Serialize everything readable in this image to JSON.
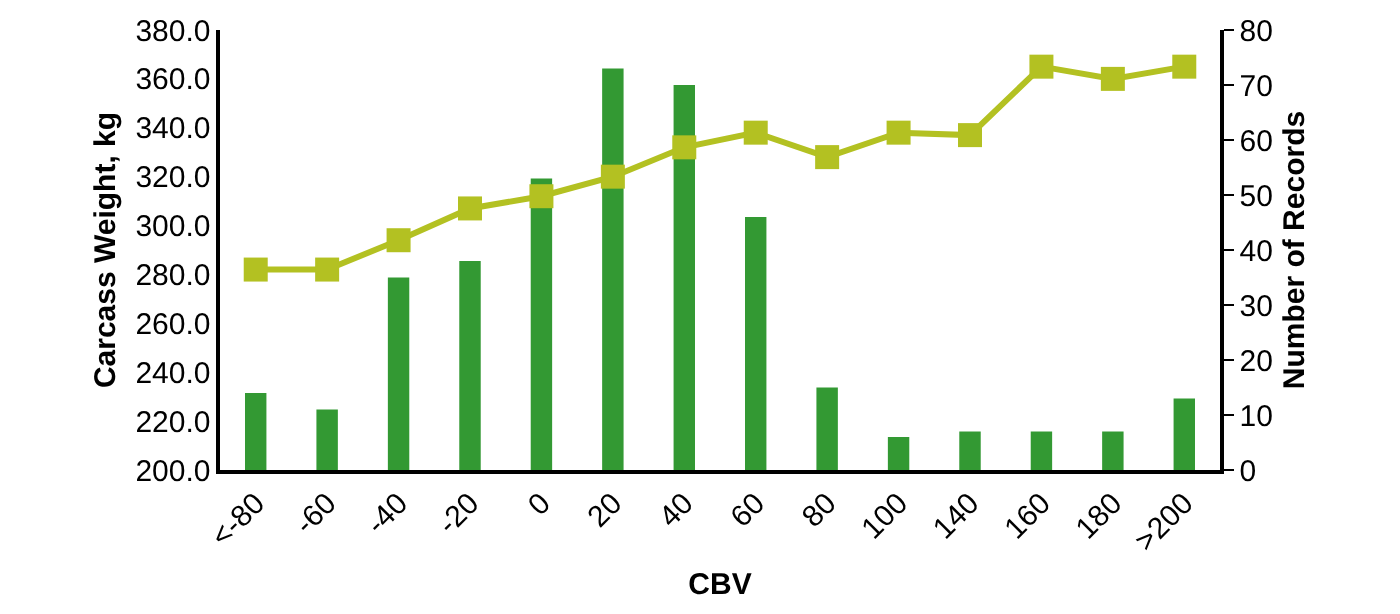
{
  "chart_data": {
    "type": "bar",
    "xlabel": "CBV",
    "ylabel": "Carcass Weight, kg",
    "y2label": "Number of Records",
    "categories": [
      "<-80",
      "-60",
      "-40",
      "-20",
      "0",
      "20",
      "40",
      "60",
      "80",
      "100",
      "140",
      "160",
      "180",
      ">200"
    ],
    "series": [
      {
        "axis": "y2",
        "color": "#339933",
        "values": [
          14,
          11,
          35,
          38,
          53,
          73,
          70,
          46,
          15,
          6,
          7,
          7,
          7,
          13
        ]
      },
      {
        "type": "line",
        "axis": "y",
        "color": "#b3c122",
        "marker": "square",
        "values": [
          282,
          282,
          294,
          307,
          312,
          320,
          332,
          338,
          328,
          338,
          337,
          365,
          360,
          365
        ]
      }
    ],
    "ylim": [
      200,
      380
    ],
    "yticks": [
      {
        "value": 200,
        "label": "200.0"
      },
      {
        "value": 220,
        "label": "220.0"
      },
      {
        "value": 240,
        "label": "240.0"
      },
      {
        "value": 260,
        "label": "260.0"
      },
      {
        "value": 280,
        "label": "280.0"
      },
      {
        "value": 300,
        "label": "300.0"
      },
      {
        "value": 320,
        "label": "320.0"
      },
      {
        "value": 340,
        "label": "340.0"
      },
      {
        "value": 360,
        "label": "360.0"
      },
      {
        "value": 380,
        "label": "380.0"
      }
    ],
    "y2lim": [
      0,
      80
    ],
    "y2ticks": [
      0,
      10,
      20,
      30,
      40,
      50,
      60,
      70,
      80
    ],
    "grid": false
  }
}
